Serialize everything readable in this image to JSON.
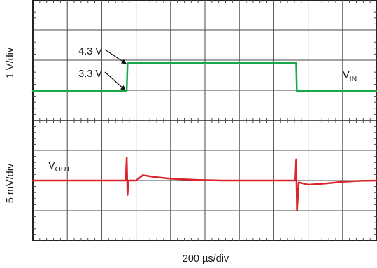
{
  "chart_data": {
    "type": "line",
    "xlabel": "200 µs/div",
    "x_divisions": 10,
    "grid": true,
    "panels": [
      {
        "name": "top",
        "ylabel": "1 V/div",
        "y_divisions": 4,
        "series": [
          {
            "name": "V_IN",
            "label_main": "V",
            "label_sub": "IN",
            "color": "#1aa64a",
            "points": [
              {
                "x": 0,
                "y": 3.3
              },
              {
                "x": 5.45,
                "y": 3.3
              },
              {
                "x": 5.5,
                "y": 4.3
              },
              {
                "x": 15.3,
                "y": 4.3
              },
              {
                "x": 15.34,
                "y": 3.28
              },
              {
                "x": 15.45,
                "y": 3.3
              },
              {
                "x": 20,
                "y": 3.3
              }
            ]
          }
        ],
        "annotations": [
          {
            "text": "4.3 V",
            "x": 5.5,
            "y": 4.3
          },
          {
            "text": "3.3 V",
            "x": 5.45,
            "y": 3.3
          }
        ]
      },
      {
        "name": "bottom",
        "ylabel": "5 mV/div",
        "y_divisions": 4,
        "series": [
          {
            "name": "V_OUT",
            "label_main": "V",
            "label_sub": "OUT",
            "color": "#d9252b",
            "points": [
              {
                "x": 0,
                "y": 0
              },
              {
                "x": 5.4,
                "y": 0
              },
              {
                "x": 5.45,
                "y": 3.8
              },
              {
                "x": 5.5,
                "y": -2.4
              },
              {
                "x": 5.55,
                "y": 0
              },
              {
                "x": 6.0,
                "y": 0
              },
              {
                "x": 6.4,
                "y": 0.9
              },
              {
                "x": 7.0,
                "y": 0.6
              },
              {
                "x": 8.0,
                "y": 0.3
              },
              {
                "x": 9.5,
                "y": 0.1
              },
              {
                "x": 11.0,
                "y": 0
              },
              {
                "x": 15.25,
                "y": 0
              },
              {
                "x": 15.3,
                "y": 3.5
              },
              {
                "x": 15.35,
                "y": -5.0
              },
              {
                "x": 15.45,
                "y": -0.3
              },
              {
                "x": 16.0,
                "y": -0.7
              },
              {
                "x": 17.0,
                "y": -0.5
              },
              {
                "x": 18.0,
                "y": -0.2
              },
              {
                "x": 19.0,
                "y": -0.05
              },
              {
                "x": 20,
                "y": 0
              }
            ]
          }
        ]
      }
    ]
  }
}
